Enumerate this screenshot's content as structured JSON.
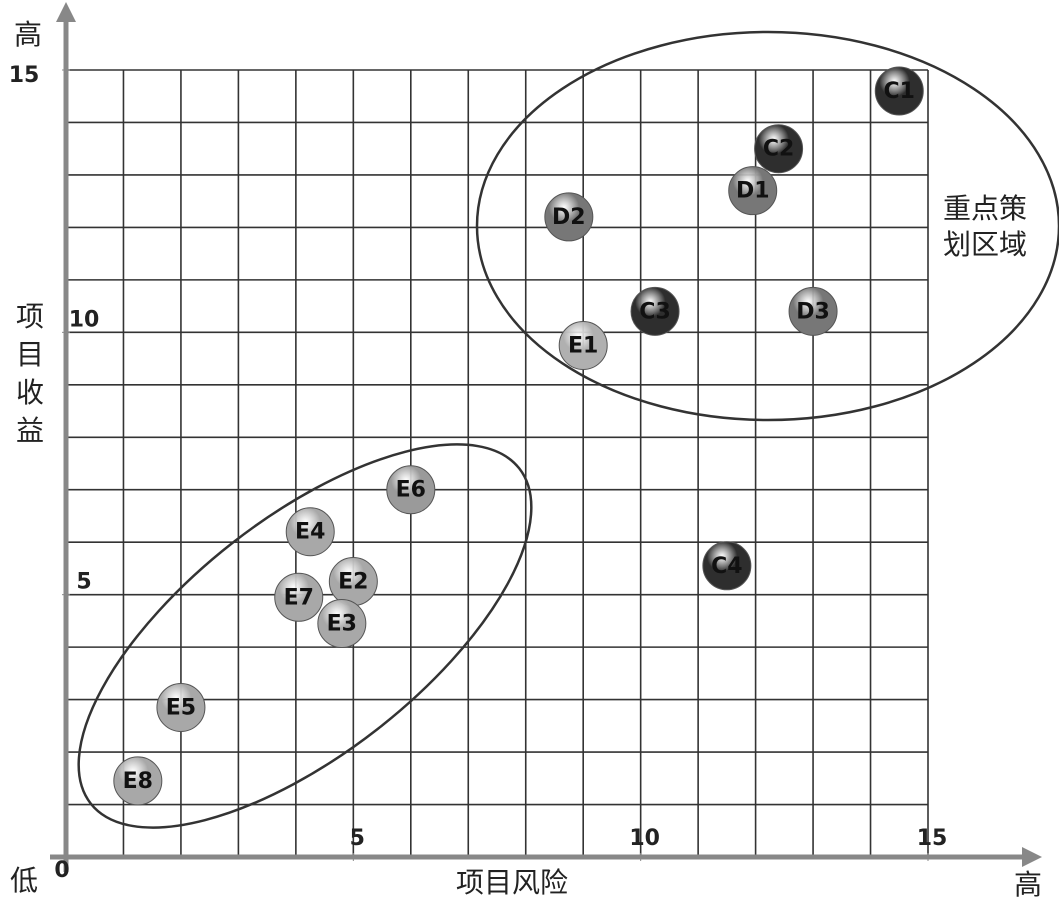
{
  "chart_data": {
    "type": "scatter",
    "x_label": "项目风险",
    "y_label": "项目收益",
    "y_high": "高",
    "y_low": "低",
    "x_high": "高",
    "annotation": [
      "重点策",
      "划区域"
    ],
    "xlim": [
      0,
      15
    ],
    "ylim": [
      0,
      15
    ],
    "xticks": [
      0,
      5,
      10,
      15
    ],
    "yticks": [
      5,
      10,
      15
    ],
    "grid_step": 1,
    "grid": true,
    "points": [
      {
        "label": "C1",
        "x": 14.5,
        "y": 14.6,
        "color": "#2e2e2e"
      },
      {
        "label": "C2",
        "x": 12.4,
        "y": 13.5,
        "color": "#2e2e2e"
      },
      {
        "label": "D1",
        "x": 11.95,
        "y": 12.7,
        "color": "#777777"
      },
      {
        "label": "D2",
        "x": 8.75,
        "y": 12.2,
        "color": "#777777"
      },
      {
        "label": "C3",
        "x": 10.25,
        "y": 10.4,
        "color": "#2e2e2e"
      },
      {
        "label": "D3",
        "x": 13.0,
        "y": 10.4,
        "color": "#777777"
      },
      {
        "label": "E1",
        "x": 9.0,
        "y": 9.75,
        "color": "#b0b0b0"
      },
      {
        "label": "E6",
        "x": 6.0,
        "y": 7.0,
        "color": "#9a9a9a"
      },
      {
        "label": "E4",
        "x": 4.25,
        "y": 6.2,
        "color": "#a8a8a8"
      },
      {
        "label": "E2",
        "x": 5.0,
        "y": 5.25,
        "color": "#a8a8a8"
      },
      {
        "label": "E7",
        "x": 4.05,
        "y": 4.95,
        "color": "#a8a8a8"
      },
      {
        "label": "E3",
        "x": 4.8,
        "y": 4.45,
        "color": "#a8a8a8"
      },
      {
        "label": "C4",
        "x": 11.5,
        "y": 5.55,
        "color": "#2e2e2e"
      },
      {
        "label": "E5",
        "x": 2.0,
        "y": 2.85,
        "color": "#a8a8a8"
      },
      {
        "label": "E8",
        "x": 1.25,
        "y": 1.45,
        "color": "#a8a8a8"
      }
    ]
  }
}
